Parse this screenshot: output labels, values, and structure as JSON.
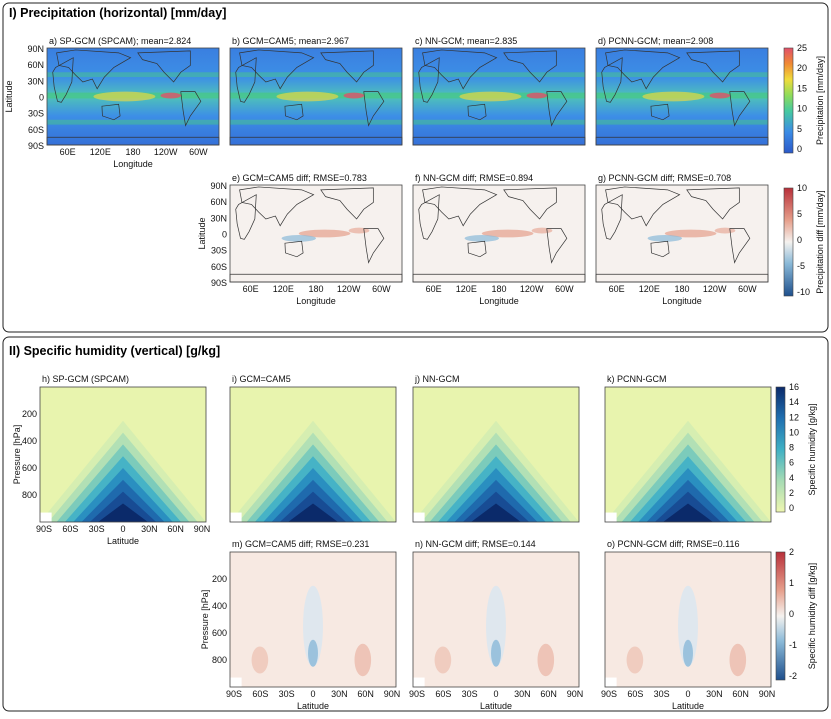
{
  "section1": {
    "title": "I) Precipitation (horizontal) [mm/day]"
  },
  "section2": {
    "title": "II) Specific humidity (vertical) [g/kg]"
  },
  "common": {
    "lon_ticks": [
      "60E",
      "120E",
      "180",
      "120W",
      "60W"
    ],
    "lat_ticks_map": [
      "90N",
      "60N",
      "30N",
      "0",
      "30S",
      "60S",
      "90S"
    ],
    "lat_ticks_prof": [
      "90S",
      "60S",
      "30S",
      "0",
      "30N",
      "60N",
      "90N"
    ],
    "pressure_ticks": [
      "200",
      "400",
      "600",
      "800"
    ],
    "xlabel_map": "Longitude",
    "ylabel_map": "Latitude",
    "xlabel_prof": "Latitude",
    "ylabel_prof": "Pressure [hPa]"
  },
  "colorbars": {
    "precip": {
      "label": "Precipitation [mm/day]",
      "ticks": [
        "25",
        "20",
        "15",
        "10",
        "5",
        "0"
      ]
    },
    "precip_diff": {
      "label": "Precipitation diff [mm/day]",
      "ticks": [
        "10",
        "5",
        "0",
        "-5",
        "-10"
      ]
    },
    "humidity": {
      "label": "Specific humidity [g/kg]",
      "ticks": [
        "16",
        "14",
        "12",
        "10",
        "8",
        "6",
        "4",
        "2",
        "0"
      ]
    },
    "humidity_diff": {
      "label": "Specific humidity diff [g/kg]",
      "ticks": [
        "2",
        "1",
        "0",
        "-1",
        "-2"
      ]
    }
  },
  "colors": {
    "ocean_blue": "#3b7be0",
    "wet_green": "#47c78a",
    "diff_red": "#e6a08c",
    "diff_blue": "#8ab9d8",
    "humid_dark": "#0b2a6a",
    "humid_light": "#e8f4ae"
  },
  "chart_data": [
    {
      "type": "heatmap",
      "id": "a",
      "title": "a) SP-GCM (SPCAM); mean=2.824",
      "variable": "precipitation",
      "units": "mm/day",
      "mean": 2.824,
      "clim": [
        0,
        25
      ],
      "xlabel": "Longitude",
      "ylabel": "Latitude"
    },
    {
      "type": "heatmap",
      "id": "b",
      "title": "b) GCM=CAM5; mean=2.967",
      "variable": "precipitation",
      "units": "mm/day",
      "mean": 2.967,
      "clim": [
        0,
        25
      ]
    },
    {
      "type": "heatmap",
      "id": "c",
      "title": "c) NN-GCM; mean=2.835",
      "variable": "precipitation",
      "units": "mm/day",
      "mean": 2.835,
      "clim": [
        0,
        25
      ]
    },
    {
      "type": "heatmap",
      "id": "d",
      "title": "d) PCNN-GCM; mean=2.908",
      "variable": "precipitation",
      "units": "mm/day",
      "mean": 2.908,
      "clim": [
        0,
        25
      ]
    },
    {
      "type": "heatmap",
      "id": "e",
      "title": "e) GCM=CAM5 diff; RMSE=0.783",
      "variable": "precipitation diff",
      "units": "mm/day",
      "rmse": 0.783,
      "clim": [
        -10,
        10
      ]
    },
    {
      "type": "heatmap",
      "id": "f",
      "title": "f) NN-GCM diff; RMSE=0.894",
      "variable": "precipitation diff",
      "units": "mm/day",
      "rmse": 0.894,
      "clim": [
        -10,
        10
      ]
    },
    {
      "type": "heatmap",
      "id": "g",
      "title": "g) PCNN-GCM diff; RMSE=0.708",
      "variable": "precipitation diff",
      "units": "mm/day",
      "rmse": 0.708,
      "clim": [
        -10,
        10
      ]
    },
    {
      "type": "heatmap",
      "id": "h",
      "title": "h) SP-GCM (SPCAM)",
      "variable": "specific humidity",
      "units": "g/kg",
      "clim": [
        0,
        17
      ],
      "ylim": [
        1000,
        0
      ]
    },
    {
      "type": "heatmap",
      "id": "i",
      "title": "i) GCM=CAM5",
      "variable": "specific humidity",
      "units": "g/kg",
      "clim": [
        0,
        17
      ]
    },
    {
      "type": "heatmap",
      "id": "j",
      "title": "j) NN-GCM",
      "variable": "specific humidity",
      "units": "g/kg",
      "clim": [
        0,
        17
      ]
    },
    {
      "type": "heatmap",
      "id": "k",
      "title": "k) PCNN-GCM",
      "variable": "specific humidity",
      "units": "g/kg",
      "clim": [
        0,
        17
      ]
    },
    {
      "type": "heatmap",
      "id": "m",
      "title": "m) GCM=CAM5 diff; RMSE=0.231",
      "variable": "specific humidity diff",
      "units": "g/kg",
      "rmse": 0.231,
      "clim": [
        -2.5,
        2.5
      ]
    },
    {
      "type": "heatmap",
      "id": "n",
      "title": "n) NN-GCM diff; RMSE=0.144",
      "variable": "specific humidity diff",
      "units": "g/kg",
      "rmse": 0.144,
      "clim": [
        -2.5,
        2.5
      ]
    },
    {
      "type": "heatmap",
      "id": "o",
      "title": "o) PCNN-GCM diff; RMSE=0.116",
      "variable": "specific humidity diff",
      "units": "g/kg",
      "rmse": 0.116,
      "clim": [
        -2.5,
        2.5
      ]
    }
  ]
}
